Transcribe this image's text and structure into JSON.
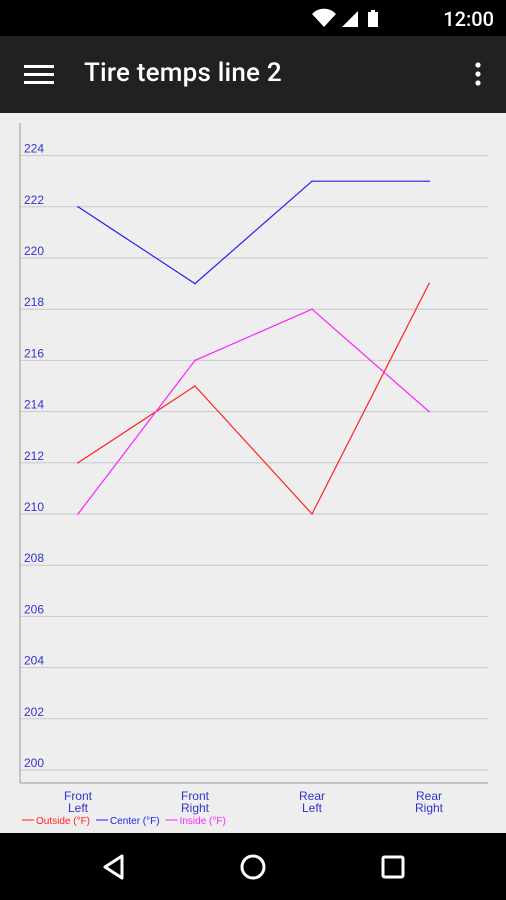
{
  "status_bar": {
    "time": "12:00",
    "icons": [
      "wifi-icon",
      "cell-signal-icon",
      "battery-icon"
    ]
  },
  "app_bar": {
    "title": "Tire temps line 2",
    "menu_icon": "hamburger-menu-icon",
    "overflow_icon": "more-vertical-icon"
  },
  "nav_bar": {
    "icons": [
      "back-icon",
      "home-icon",
      "recents-icon"
    ]
  },
  "chart_data": {
    "type": "line",
    "title": "",
    "xlabel": "",
    "ylabel": "",
    "categories": [
      [
        "Front",
        "Left"
      ],
      [
        "Front",
        "Right"
      ],
      [
        "Rear",
        "Left"
      ],
      [
        "Rear",
        "Right"
      ]
    ],
    "y_ticks": [
      "200",
      "202",
      "204",
      "206",
      "208",
      "210",
      "212",
      "214",
      "216",
      "218",
      "220",
      "222",
      "224"
    ],
    "ylim": [
      200,
      224
    ],
    "grid": true,
    "legend_position": "bottom-left",
    "tick_label_color": "#3333cc",
    "series": [
      {
        "name": "Outside (°F)",
        "color": "#ff2222",
        "values": [
          212,
          215,
          210,
          219
        ]
      },
      {
        "name": "Center (°F)",
        "color": "#2222ee",
        "values": [
          222,
          219,
          223,
          223
        ]
      },
      {
        "name": "Inside (°F)",
        "color": "#ff22ff",
        "values": [
          210,
          216,
          218,
          214
        ]
      }
    ]
  }
}
